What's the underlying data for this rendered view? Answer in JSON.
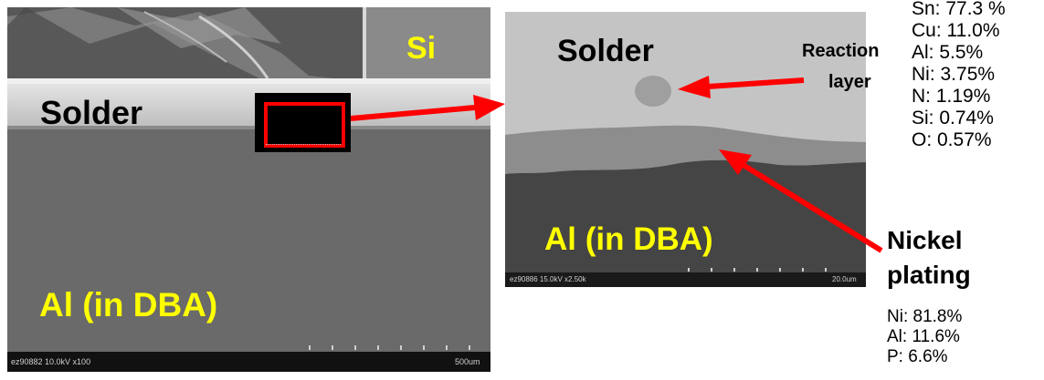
{
  "left_image": {
    "label_si": "Si",
    "label_solder": "Solder",
    "label_al": "Al (in DBA)",
    "info_bar": "ez90882 10.0kV x100",
    "scale_bar": "500um"
  },
  "right_image": {
    "label_solder": "Solder",
    "label_al": "Al (in DBA)",
    "info_bar": "ez90886 15.0kV x2.50k",
    "scale_bar": "20.0um"
  },
  "annotations": {
    "reaction_layer": "Reaction\nlayer",
    "reaction_layer_line1": "Reaction",
    "reaction_layer_line2": "layer",
    "nickel_plating_line1": "Nickel",
    "nickel_plating_line2": "plating"
  },
  "reaction_layer_composition": [
    "Sn: 77.3 %",
    "Cu: 11.0%",
    "Al: 5.5%",
    "Ni: 3.75%",
    "N: 1.19%",
    "Si: 0.74%",
    "O: 0.57%"
  ],
  "nickel_plating_composition": [
    "Ni: 81.8%",
    "Al: 11.6%",
    "P: 6.6%"
  ],
  "colors": {
    "arrow": "#ff0000",
    "label_highlight": "#ffff00"
  }
}
